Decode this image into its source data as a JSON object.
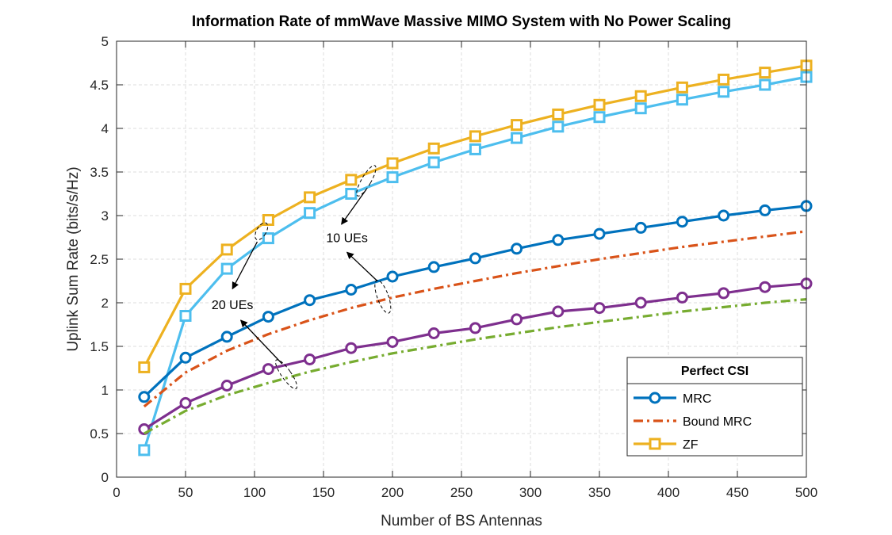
{
  "chart_data": {
    "type": "line",
    "title": "Information Rate of mmWave Massive MIMO System with No Power Scaling",
    "xlabel": "Number of BS Antennas",
    "ylabel": "Uplink Sum Rate (bits/s/Hz)",
    "xlim": [
      0,
      500
    ],
    "ylim": [
      0,
      5
    ],
    "xticks": [
      0,
      50,
      100,
      150,
      200,
      250,
      300,
      350,
      400,
      450,
      500
    ],
    "yticks": [
      0,
      0.5,
      1,
      1.5,
      2,
      2.5,
      3,
      3.5,
      4,
      4.5,
      5
    ],
    "grid": true,
    "legend_placement": "bottom-right",
    "legend_title": "Perfect CSI",
    "legend": [
      {
        "label": "MRC",
        "color": "#0072BD",
        "style": "solid",
        "marker": "circle"
      },
      {
        "label": "Bound MRC",
        "color": "#D95319",
        "style": "dashdot",
        "marker": "none"
      },
      {
        "label": "ZF",
        "color": "#EDB120",
        "style": "solid",
        "marker": "square"
      }
    ],
    "x": [
      20,
      50,
      80,
      110,
      140,
      170,
      200,
      230,
      260,
      290,
      320,
      350,
      380,
      410,
      440,
      470,
      500
    ],
    "series": [
      {
        "color": "#EDB120",
        "style": "solid",
        "marker": "square",
        "values": [
          1.26,
          2.16,
          2.61,
          2.95,
          3.21,
          3.41,
          3.6,
          3.77,
          3.91,
          4.04,
          4.16,
          4.27,
          4.37,
          4.47,
          4.56,
          4.64,
          4.72
        ]
      },
      {
        "color": "#4DBEEE",
        "style": "solid",
        "marker": "square",
        "values": [
          0.31,
          1.85,
          2.39,
          2.74,
          3.03,
          3.25,
          3.44,
          3.61,
          3.76,
          3.89,
          4.02,
          4.13,
          4.23,
          4.33,
          4.42,
          4.5,
          4.59
        ]
      },
      {
        "color": "#0072BD",
        "style": "solid",
        "marker": "circle",
        "values": [
          0.92,
          1.37,
          1.61,
          1.84,
          2.03,
          2.15,
          2.3,
          2.41,
          2.51,
          2.62,
          2.72,
          2.79,
          2.86,
          2.93,
          3.0,
          3.06,
          3.11
        ]
      },
      {
        "color": "#D95319",
        "style": "dashdot",
        "marker": "none",
        "values": [
          0.81,
          1.2,
          1.45,
          1.64,
          1.8,
          1.94,
          2.06,
          2.16,
          2.25,
          2.34,
          2.42,
          2.5,
          2.57,
          2.64,
          2.7,
          2.76,
          2.82
        ]
      },
      {
        "color": "#7E2F8E",
        "style": "solid",
        "marker": "circle",
        "values": [
          0.55,
          0.85,
          1.05,
          1.24,
          1.35,
          1.48,
          1.55,
          1.65,
          1.71,
          1.81,
          1.9,
          1.94,
          2.0,
          2.06,
          2.11,
          2.18,
          2.22
        ]
      },
      {
        "color": "#77AC30",
        "style": "dashdot",
        "marker": "none",
        "values": [
          0.5,
          0.76,
          0.94,
          1.08,
          1.21,
          1.32,
          1.42,
          1.5,
          1.58,
          1.65,
          1.72,
          1.78,
          1.84,
          1.9,
          1.95,
          2.0,
          2.04
        ]
      }
    ],
    "annotations": [
      {
        "text": "10 UEs",
        "at": [
          167,
          2.75
        ]
      },
      {
        "text": "20 UEs",
        "at": [
          84,
          1.98
        ]
      }
    ]
  }
}
